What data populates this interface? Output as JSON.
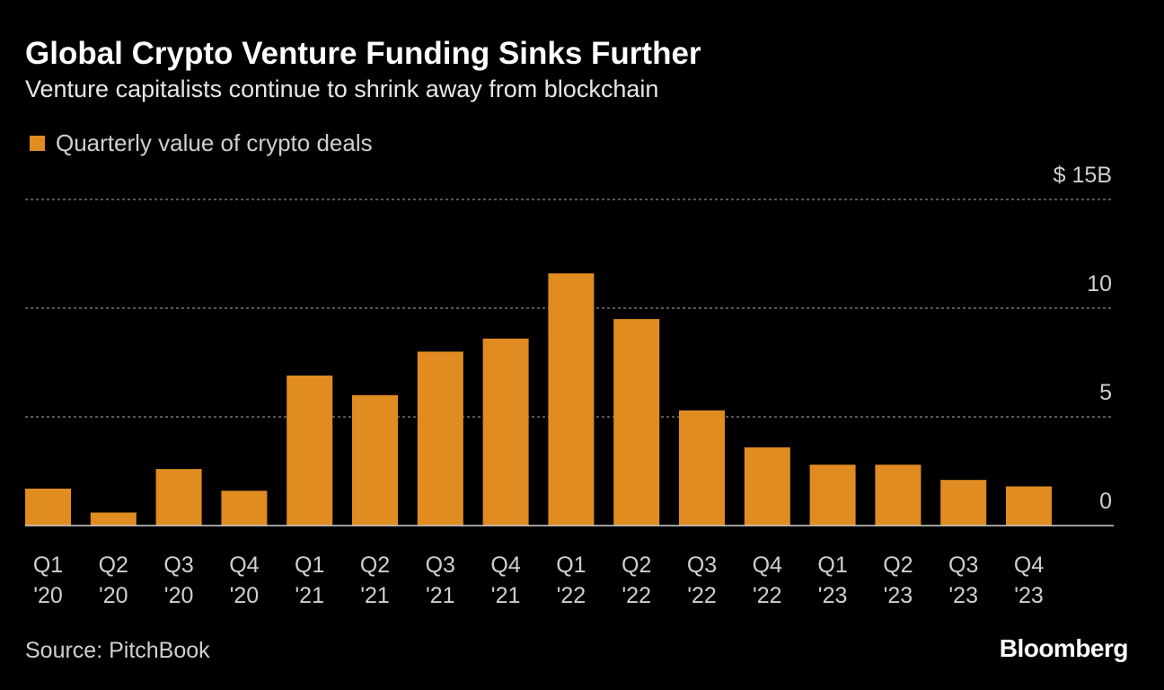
{
  "header": {
    "title": "Global Crypto Venture Funding Sinks Further",
    "subtitle": "Venture capitalists continue to shrink away from blockchain"
  },
  "footer": {
    "source": "Source: PitchBook",
    "logo": "Bloomberg"
  },
  "chart_data": {
    "type": "bar",
    "categories": [
      [
        "Q1",
        "'20"
      ],
      [
        "Q2",
        "'20"
      ],
      [
        "Q3",
        "'20"
      ],
      [
        "Q4",
        "'20"
      ],
      [
        "Q1",
        "'21"
      ],
      [
        "Q2",
        "'21"
      ],
      [
        "Q3",
        "'21"
      ],
      [
        "Q4",
        "'21"
      ],
      [
        "Q1",
        "'22"
      ],
      [
        "Q2",
        "'22"
      ],
      [
        "Q3",
        "'22"
      ],
      [
        "Q4",
        "'22"
      ],
      [
        "Q1",
        "'23"
      ],
      [
        "Q2",
        "'23"
      ],
      [
        "Q3",
        "'23"
      ],
      [
        "Q4",
        "'23"
      ]
    ],
    "series": [
      {
        "name": "Quarterly value of crypto deals",
        "color": "#e08c21",
        "values": [
          1.7,
          0.6,
          2.6,
          1.6,
          6.9,
          6.0,
          8.0,
          8.6,
          11.6,
          9.5,
          5.3,
          3.6,
          2.8,
          2.8,
          2.1,
          1.8
        ]
      }
    ],
    "yticks": [
      0,
      5,
      10,
      15
    ],
    "ytick_labels": [
      "0",
      "5",
      "10",
      "$ 15B"
    ],
    "ylim": [
      0,
      15
    ],
    "grid": true,
    "legend": "top-left",
    "y_axis_side": "right"
  }
}
